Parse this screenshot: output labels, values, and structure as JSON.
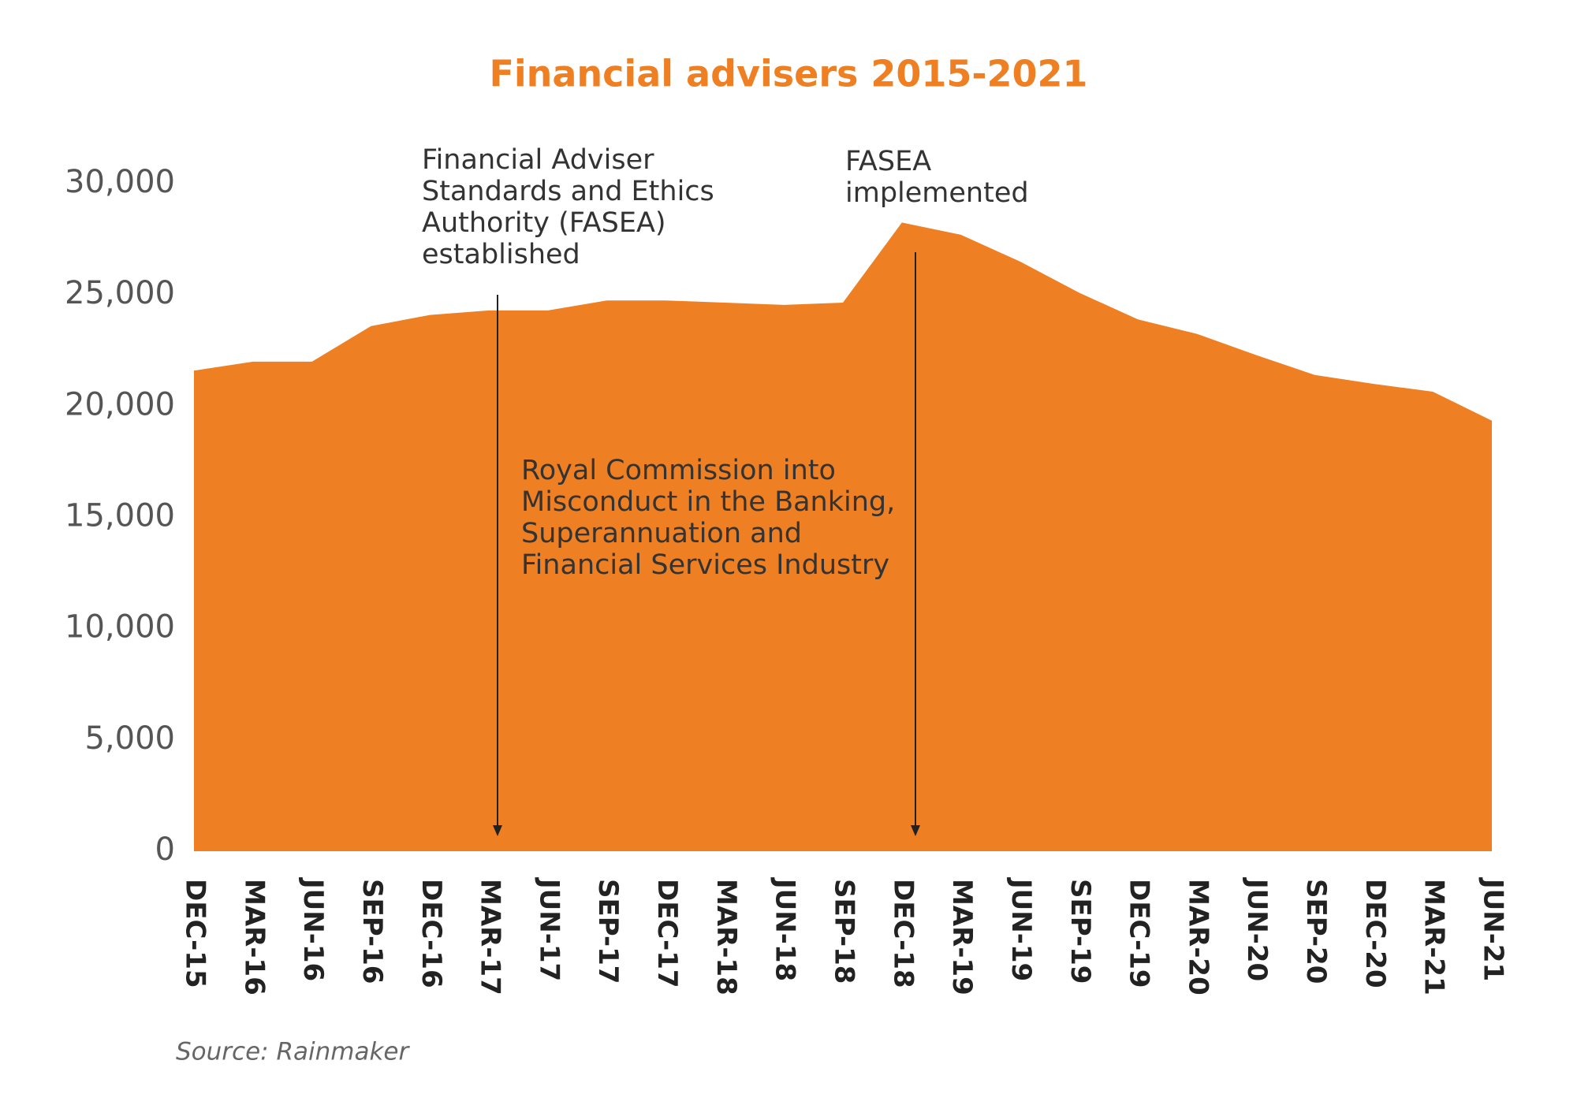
{
  "chart_data": {
    "type": "area",
    "title": "Financial advisers 2015-2021",
    "source": "Source: Rainmaker",
    "categories": [
      "DEC-15",
      "MAR-16",
      "JUN-16",
      "SEP-16",
      "DEC-16",
      "MAR-17",
      "JUN-17",
      "SEP-17",
      "DEC-17",
      "MAR-18",
      "JUN-18",
      "SEP-18",
      "DEC-18",
      "MAR-19",
      "JUN-19",
      "SEP-19",
      "DEC-19",
      "MAR-20",
      "JUN-20",
      "SEP-20",
      "DEC-20",
      "MAR-21",
      "JUN-21"
    ],
    "values": [
      21600,
      22000,
      22000,
      23600,
      24100,
      24300,
      24300,
      24750,
      24750,
      24650,
      24550,
      24650,
      28250,
      27700,
      26500,
      25100,
      23900,
      23250,
      22300,
      21400,
      21000,
      20650,
      19350
    ],
    "color": "#ee7f22",
    "ylim": [
      0,
      30000
    ],
    "yticks": [
      0,
      {
        "value": 5000,
        "label": "5,000"
      },
      {
        "value": 10000,
        "label": "10,000"
      },
      {
        "value": 15000,
        "label": "15,000"
      },
      {
        "value": 20000,
        "label": "20,000"
      },
      {
        "value": 25000,
        "label": "25,000"
      },
      {
        "value": 30000,
        "label": "30,000"
      }
    ],
    "grid": false,
    "annotations": [
      {
        "lines": [
          "Financial Adviser",
          "Standards and Ethics",
          "Authority (FASEA)",
          "established"
        ]
      },
      {
        "lines": [
          "FASEA",
          "implemented"
        ]
      },
      {
        "lines": [
          "Royal Commission into",
          "Misconduct in the Banking,",
          "Superannuation and",
          "Financial Services Industry"
        ]
      }
    ]
  }
}
